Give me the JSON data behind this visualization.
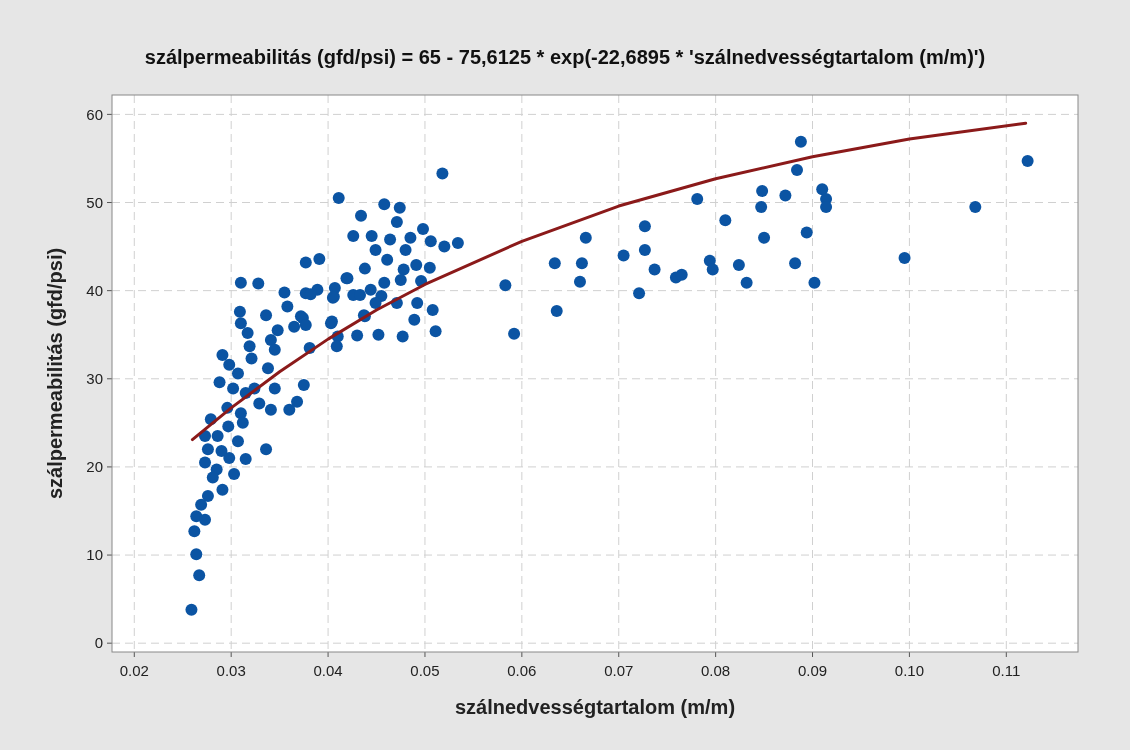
{
  "chart_data": {
    "type": "scatter",
    "title": "szálpermeabilitás (gfd/psi) = 65 - 75,6125 * exp(-22,6895 * 'szálnedvességtartalom (m/m)')",
    "xlabel": "szálnedvességtartalom (m/m)",
    "ylabel": "szálpermeabilitás (gfd/psi)",
    "xlim": [
      0.0177,
      0.1174
    ],
    "ylim": [
      -1,
      62.2
    ],
    "xticks": [
      {
        "value": 0.02,
        "label": "0.02"
      },
      {
        "value": 0.03,
        "label": "0.03"
      },
      {
        "value": 0.04,
        "label": "0.04"
      },
      {
        "value": 0.05,
        "label": "0.05"
      },
      {
        "value": 0.06,
        "label": "0.06"
      },
      {
        "value": 0.07,
        "label": "0.07"
      },
      {
        "value": 0.08,
        "label": "0.08"
      },
      {
        "value": 0.09,
        "label": "0.09"
      },
      {
        "value": 0.1,
        "label": "0.10"
      },
      {
        "value": 0.11,
        "label": "0.11"
      }
    ],
    "yticks": [
      0,
      10,
      20,
      30,
      40,
      50,
      60
    ],
    "grid": true,
    "series": [
      {
        "color": "#0b54a3",
        "marker": "circle",
        "x": [
          0.0583,
          0.0592,
          0.0634,
          0.0636,
          0.0662,
          0.066,
          0.0666,
          0.0705,
          0.0721,
          0.0727,
          0.0727,
          0.0737,
          0.0759,
          0.0765,
          0.0781,
          0.0794,
          0.0797,
          0.081,
          0.0824,
          0.0832,
          0.0848,
          0.0847,
          0.085,
          0.0872,
          0.0882,
          0.0884,
          0.0888,
          0.0894,
          0.0902,
          0.091,
          0.0914,
          0.0914,
          0.0995,
          0.1068,
          0.1122,
          0.0518,
          0.0411,
          0.0458,
          0.0474,
          0.0434,
          0.0471,
          0.0498,
          0.0426,
          0.0445,
          0.0485,
          0.0506,
          0.052,
          0.0534,
          0.0464,
          0.0449,
          0.048,
          0.0461,
          0.0377,
          0.0391,
          0.0438,
          0.0478,
          0.0505,
          0.0491,
          0.0419,
          0.0496,
          0.0475,
          0.0377,
          0.0389,
          0.0405,
          0.0407,
          0.0426,
          0.0444,
          0.0458,
          0.0455,
          0.0471,
          0.0449,
          0.0492,
          0.0508,
          0.0489,
          0.0438,
          0.0403,
          0.0374,
          0.041,
          0.043,
          0.0452,
          0.0477,
          0.0511,
          0.0409,
          0.0381,
          0.031,
          0.0328,
          0.0355,
          0.0382,
          0.0406,
          0.042,
          0.0433,
          0.0309,
          0.031,
          0.0336,
          0.0358,
          0.0372,
          0.0377,
          0.0365,
          0.0404,
          0.0437,
          0.0317,
          0.0319,
          0.0321,
          0.0341,
          0.0348,
          0.0345,
          0.0338,
          0.0291,
          0.0298,
          0.0307,
          0.0288,
          0.0302,
          0.0315,
          0.0324,
          0.0345,
          0.0375,
          0.0368,
          0.036,
          0.0341,
          0.0329,
          0.031,
          0.0296,
          0.0279,
          0.0297,
          0.0312,
          0.0273,
          0.0286,
          0.0307,
          0.0336,
          0.0276,
          0.029,
          0.0298,
          0.0315,
          0.0273,
          0.0285,
          0.0303,
          0.0281,
          0.0291,
          0.0276,
          0.0269,
          0.0264,
          0.0273,
          0.0262,
          0.0264,
          0.0267,
          0.0259
        ],
        "values": [
          40.6,
          35.1,
          43.1,
          37.7,
          43.1,
          41,
          46,
          44,
          39.7,
          44.6,
          47.3,
          42.4,
          41.5,
          41.8,
          50.4,
          43.4,
          42.4,
          48,
          42.9,
          40.9,
          51.3,
          49.5,
          46,
          50.8,
          43.1,
          53.7,
          56.9,
          46.6,
          40.9,
          51.5,
          50.4,
          49.5,
          43.7,
          49.5,
          54.7,
          53.3,
          50.5,
          49.8,
          49.4,
          48.5,
          47.8,
          47,
          46.2,
          46.2,
          46,
          45.6,
          45,
          45.4,
          45.8,
          44.6,
          44.6,
          43.5,
          43.2,
          43.6,
          42.5,
          42.4,
          42.6,
          42.9,
          41.4,
          41.1,
          41.2,
          39.7,
          40.1,
          39.2,
          40.3,
          39.5,
          40.1,
          40.9,
          39.4,
          38.6,
          38.6,
          38.6,
          37.8,
          36.7,
          37.1,
          36.3,
          36.9,
          34.8,
          34.9,
          35,
          34.8,
          35.4,
          33.7,
          33.5,
          40.9,
          40.8,
          39.8,
          39.6,
          39.3,
          41.4,
          39.5,
          37.6,
          36.3,
          37.2,
          38.2,
          37.1,
          36.1,
          35.9,
          36.5,
          37.2,
          35.2,
          33.7,
          32.3,
          34.4,
          35.5,
          33.3,
          31.2,
          32.7,
          31.6,
          30.6,
          29.6,
          28.9,
          28.4,
          28.9,
          28.9,
          29.3,
          27.4,
          26.5,
          26.5,
          27.2,
          26.1,
          26.7,
          25.4,
          24.6,
          25,
          23.5,
          23.5,
          22.9,
          22,
          22,
          21.8,
          21,
          20.9,
          20.5,
          19.7,
          19.2,
          18.8,
          17.4,
          16.7,
          15.7,
          14.4,
          14,
          12.7,
          10.1,
          7.7,
          3.8
        ]
      },
      {
        "type": "line",
        "color": "#8b1a1a",
        "marker": "none",
        "line_style": "solid",
        "x": [
          0.026,
          0.03,
          0.035,
          0.04,
          0.045,
          0.05,
          0.06,
          0.07,
          0.08,
          0.09,
          0.1,
          0.112
        ],
        "values": [
          23.1,
          26.7,
          30.8,
          34.5,
          37.8,
          40.7,
          45.6,
          49.6,
          52.7,
          55.2,
          57.2,
          59
        ]
      }
    ]
  }
}
